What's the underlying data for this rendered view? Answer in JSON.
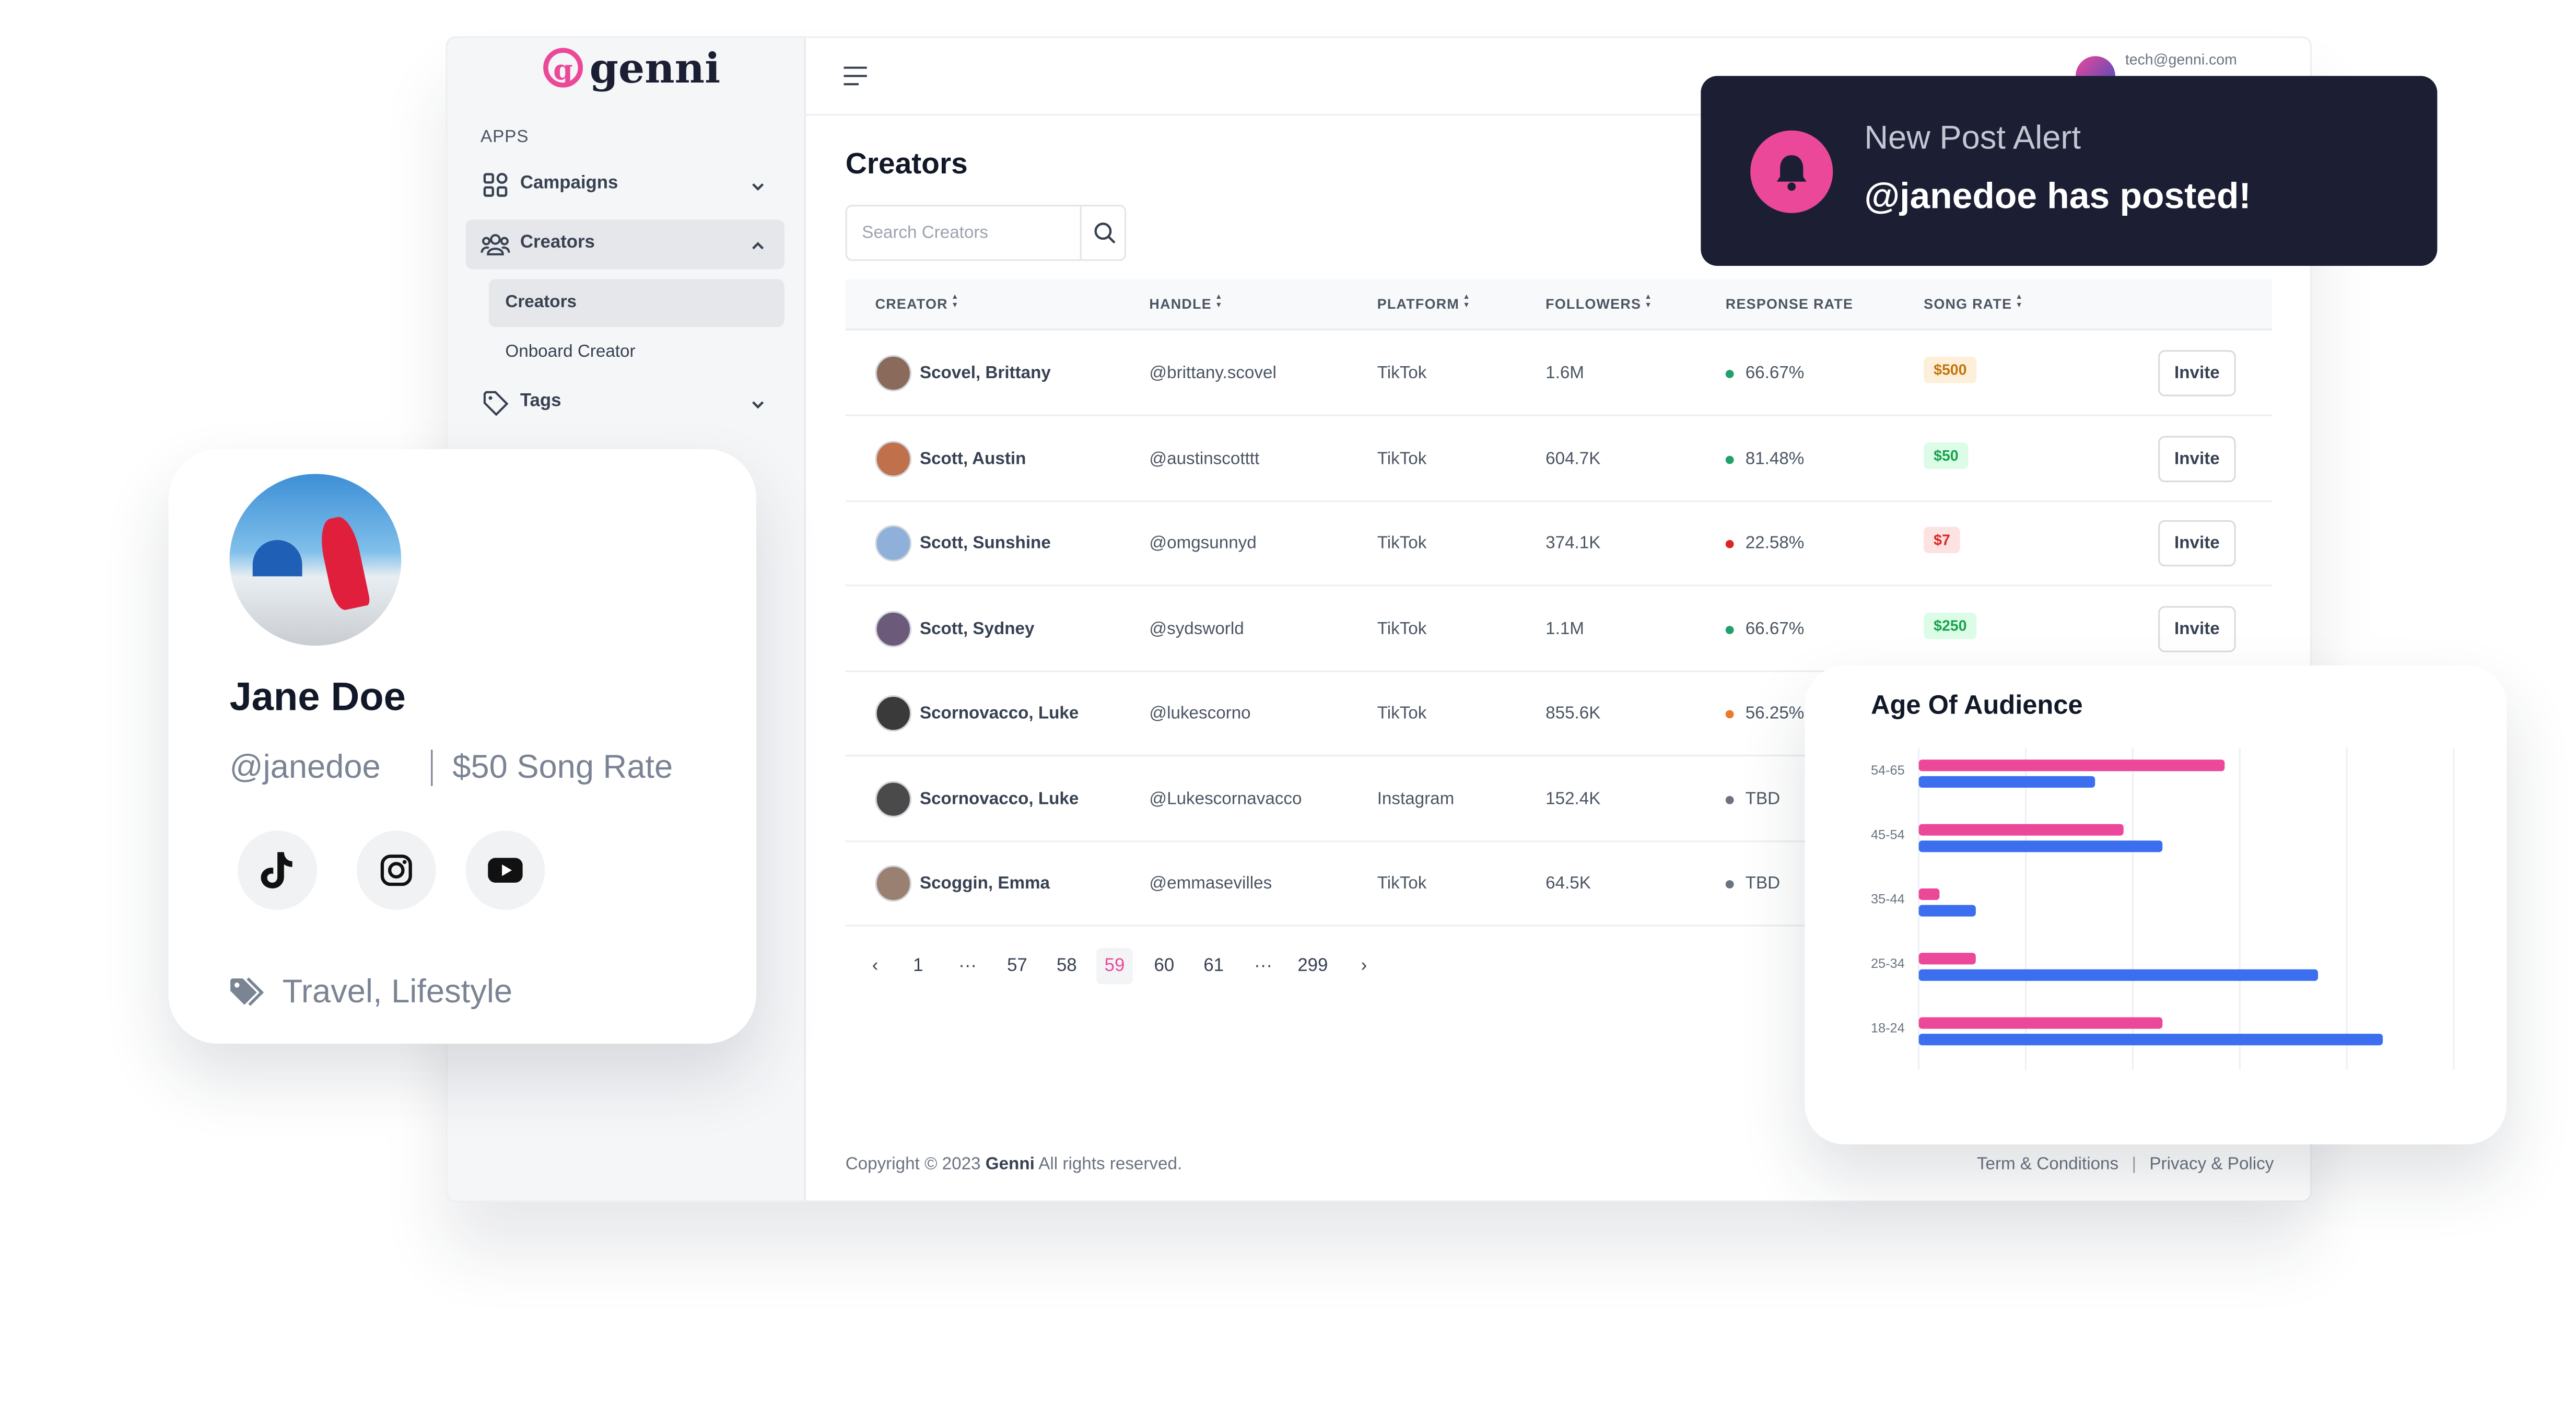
{
  "sidebar": {
    "logo": "genni",
    "section": "APPS",
    "items": [
      {
        "label": "Campaigns"
      },
      {
        "label": "Creators",
        "children": [
          "Creators",
          "Onboard Creator"
        ]
      },
      {
        "label": "Tags"
      }
    ]
  },
  "header": {
    "email": "tech@genni.com"
  },
  "page": {
    "title": "Creators",
    "search_placeholder": "Search Creators"
  },
  "table": {
    "columns": [
      "CREATOR",
      "HANDLE",
      "PLATFORM",
      "FOLLOWERS",
      "RESPONSE RATE",
      "SONG RATE"
    ],
    "invite": "Invite",
    "rows": [
      {
        "name": "Scovel, Brittany",
        "handle": "@brittany.scovel",
        "platform": "TikTok",
        "followers": "1.6M",
        "response": "66.67%",
        "status_color": "#22a06b",
        "rate": "$500",
        "rate_color": "#c2740c",
        "rate_bg": "#fdefd9"
      },
      {
        "name": "Scott, Austin",
        "handle": "@austinscotttt",
        "platform": "TikTok",
        "followers": "604.7K",
        "response": "81.48%",
        "status_color": "#22a06b",
        "rate": "$50",
        "rate_color": "#16a34a",
        "rate_bg": "#dcfce7"
      },
      {
        "name": "Scott, Sunshine",
        "handle": "@omgsunnyd",
        "platform": "TikTok",
        "followers": "374.1K",
        "response": "22.58%",
        "status_color": "#dc2626",
        "rate": "$7",
        "rate_color": "#dc2626",
        "rate_bg": "#fde2e2"
      },
      {
        "name": "Scott, Sydney",
        "handle": "@sydsworld",
        "platform": "TikTok",
        "followers": "1.1M",
        "response": "66.67%",
        "status_color": "#22a06b",
        "rate": "$250",
        "rate_color": "#16a34a",
        "rate_bg": "#dcfce7"
      },
      {
        "name": "Scornovacco, Luke",
        "handle": "@lukescorno",
        "platform": "TikTok",
        "followers": "855.6K",
        "response": "56.25%",
        "status_color": "#ea7a2c"
      },
      {
        "name": "Scornovacco, Luke",
        "handle": "@Lukescornavacco",
        "platform": "Instagram",
        "followers": "152.4K",
        "response": "TBD",
        "status_color": "#6b7280"
      },
      {
        "name": "Scoggin, Emma",
        "handle": "@emmasevilles",
        "platform": "TikTok",
        "followers": "64.5K",
        "response": "TBD",
        "status_color": "#6b7280"
      }
    ]
  },
  "pagination": [
    {
      "label": "‹"
    },
    {
      "label": "1"
    },
    {
      "label": "···"
    },
    {
      "label": "57"
    },
    {
      "label": "58"
    },
    {
      "label": "59",
      "active": true
    },
    {
      "label": "60"
    },
    {
      "label": "61"
    },
    {
      "label": "···"
    },
    {
      "label": "299"
    },
    {
      "label": "›"
    }
  ],
  "footer": {
    "copyright": "Copyright © 2023",
    "brand": "Genni",
    "rights": "All rights reserved.",
    "links": [
      "Term & Conditions",
      "Privacy & Policy"
    ]
  },
  "profile": {
    "name": "Jane Doe",
    "handle": "@janedoe",
    "song_rate": "$50 Song Rate",
    "tags": "Travel, Lifestyle"
  },
  "alert": {
    "title": "New Post Alert",
    "message": "@janedoe has posted!"
  },
  "chart_data": {
    "type": "bar",
    "orientation": "horizontal",
    "title": "Age Of Audience",
    "categories": [
      "54-65",
      "45-54",
      "35-44",
      "25-34",
      "18-24"
    ],
    "series": [
      {
        "color": "#ec4899",
        "values": [
          59,
          39.5,
          4,
          11,
          47
        ]
      },
      {
        "color": "#3b6ff0",
        "values": [
          34,
          47,
          11,
          77,
          89.5
        ]
      }
    ],
    "xlim": [
      0,
      100
    ],
    "grid": true
  }
}
